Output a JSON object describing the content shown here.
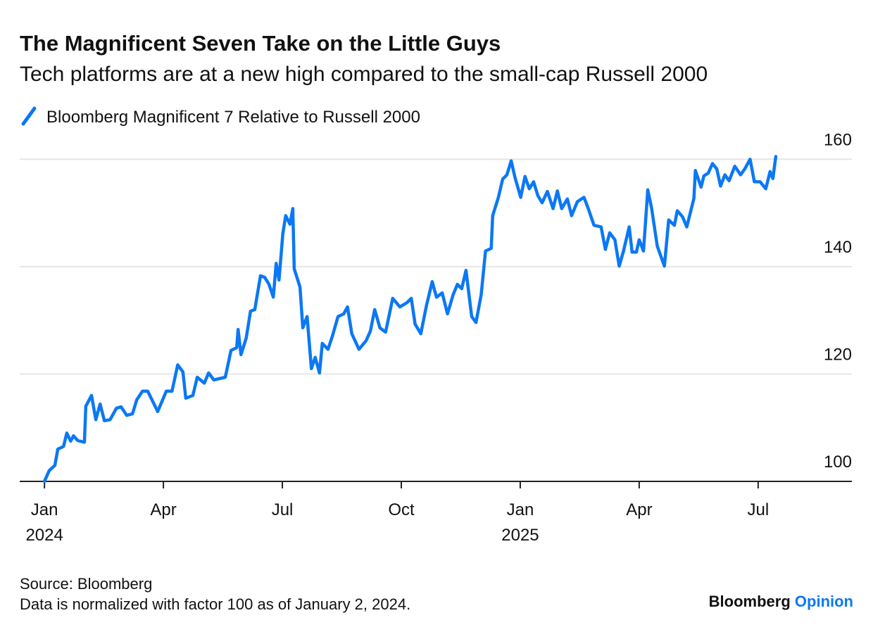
{
  "chart_data": {
    "type": "line",
    "title": "The Magnificent Seven Take on the Little Guys",
    "subtitle": "Tech platforms are at a new high compared to the small-cap Russell 2000",
    "series": [
      {
        "name": "Bloomberg Magnificent 7 Relative to Russell 2000",
        "color": "#0b78f5",
        "x": [
          2024.0,
          2024.01,
          2024.022,
          2024.028,
          2024.04,
          2024.047,
          2024.055,
          2024.061,
          2024.07,
          2024.084,
          2024.087,
          2024.099,
          2024.108,
          2024.117,
          2024.126,
          2024.138,
          2024.151,
          2024.161,
          2024.173,
          2024.185,
          2024.194,
          2024.206,
          2024.217,
          2024.238,
          2024.256,
          2024.268,
          2024.28,
          2024.291,
          2024.297,
          2024.312,
          2024.321,
          2024.336,
          2024.345,
          2024.356,
          2024.38,
          2024.392,
          2024.404,
          2024.407,
          2024.413,
          2024.424,
          2024.433,
          2024.442,
          2024.454,
          2024.463,
          2024.472,
          2024.481,
          2024.487,
          2024.493,
          2024.501,
          2024.507,
          2024.516,
          2024.522,
          2024.525,
          2024.537,
          2024.543,
          2024.552,
          2024.561,
          2024.569,
          2024.578,
          2024.584,
          2024.596,
          2024.605,
          2024.617,
          2024.629,
          2024.637,
          2024.646,
          2024.661,
          2024.676,
          2024.685,
          2024.694,
          2024.705,
          2024.717,
          2024.732,
          2024.747,
          2024.762,
          2024.771,
          2024.779,
          2024.791,
          2024.803,
          2024.815,
          2024.824,
          2024.836,
          2024.847,
          2024.859,
          2024.868,
          2024.877,
          2024.886,
          2024.898,
          2024.907,
          2024.918,
          2024.927,
          2024.939,
          2024.942,
          2024.954,
          2024.963,
          2024.972,
          2024.981,
          2024.989,
          2025.001,
          2025.01,
          2025.019,
          2025.028,
          2025.037,
          2025.046,
          2025.057,
          2025.069,
          2025.078,
          2025.087,
          2025.099,
          2025.108,
          2025.12,
          2025.134,
          2025.143,
          2025.155,
          2025.17,
          2025.179,
          2025.188,
          2025.199,
          2025.208,
          2025.217,
          2025.229,
          2025.235,
          2025.244,
          2025.25,
          2025.259,
          2025.268,
          2025.276,
          2025.288,
          2025.303,
          2025.312,
          2025.324,
          2025.33,
          2025.341,
          2025.35,
          2025.365,
          2025.368,
          2025.38,
          2025.386,
          2025.395,
          2025.404,
          2025.413,
          2025.421,
          2025.43,
          2025.439,
          2025.451,
          2025.463,
          2025.472,
          2025.483,
          2025.492,
          2025.504,
          2025.516,
          2025.525,
          2025.531,
          2025.537
        ],
        "values": [
          100,
          102,
          103,
          106,
          106.5,
          109,
          107.5,
          108.5,
          107.6,
          107.3,
          114,
          116,
          111.5,
          114.4,
          111.3,
          111.5,
          113.6,
          113.9,
          112.3,
          112.6,
          115.2,
          116.8,
          116.8,
          113,
          116.8,
          116.8,
          121.7,
          120.4,
          115.5,
          116,
          119.4,
          118.3,
          120.2,
          118.9,
          119.4,
          124.4,
          124.9,
          128.3,
          123.6,
          126.7,
          131.7,
          132,
          138.3,
          138,
          136.7,
          134.3,
          140.6,
          137.5,
          146.1,
          149.5,
          147.9,
          150.8,
          139.6,
          136.2,
          128.6,
          130.7,
          121,
          123.1,
          120.2,
          125.7,
          124.6,
          127,
          130.7,
          131.2,
          132.5,
          127.5,
          124.6,
          126.2,
          128,
          132,
          128.6,
          127.8,
          134.1,
          132.5,
          133.3,
          134.1,
          129.3,
          127.5,
          132.8,
          137.2,
          134.3,
          135.1,
          131.2,
          134.8,
          136.7,
          135.9,
          139.3,
          130.7,
          129.6,
          134.8,
          142.9,
          143.4,
          149.5,
          152.9,
          156.3,
          157.1,
          159.7,
          156.6,
          152.9,
          156.8,
          154.5,
          155.8,
          153.2,
          151.9,
          154,
          150.8,
          154.1,
          150.8,
          152.6,
          149.5,
          152.1,
          152.9,
          150.8,
          147.7,
          147.4,
          143.2,
          146.3,
          145,
          140.1,
          142.9,
          147.4,
          142.7,
          142.7,
          145,
          142.9,
          154.3,
          150.9,
          143.8,
          140.1,
          148.7,
          147.7,
          150.4,
          149.3,
          147.4,
          152.7,
          157.9,
          154.8,
          156.9,
          157.4,
          159.2,
          158.2,
          155,
          157.1,
          156,
          158.7,
          157.1,
          158.2,
          160,
          155.8,
          155.8,
          154.5,
          157.7,
          156.4,
          160.5
        ]
      }
    ],
    "xlim": [
      2023.948,
      2025.697
    ],
    "xticks": [
      {
        "value": 2024.0,
        "label": "Jan 2024"
      },
      {
        "value": 2024.25,
        "label": "Apr"
      },
      {
        "value": 2024.5,
        "label": "Jul"
      },
      {
        "value": 2024.75,
        "label": "Oct"
      },
      {
        "value": 2025.0,
        "label": "Jan 2025"
      },
      {
        "value": 2025.25,
        "label": "Apr"
      },
      {
        "value": 2025.5,
        "label": "Jul"
      }
    ],
    "ylim": [
      100,
      162
    ],
    "yticks": [
      100,
      120,
      140,
      160
    ],
    "grid": true,
    "source": "Source: Bloomberg",
    "note": "Data is normalized with factor 100 as of January 2, 2024.",
    "brand": {
      "name": "Bloomberg",
      "product": "Opinion"
    }
  }
}
